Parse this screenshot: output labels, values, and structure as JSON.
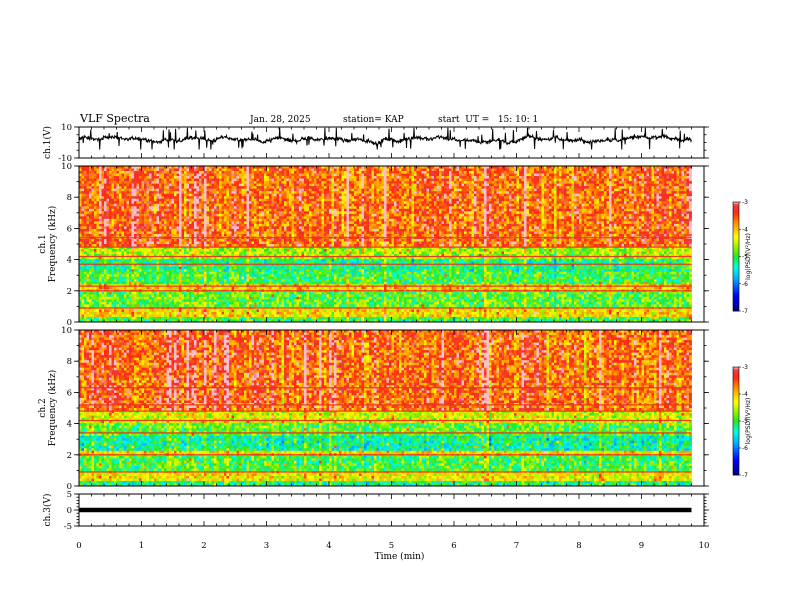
{
  "header": {
    "title": "VLF Spectra",
    "date": "Jan. 28, 2025",
    "station": "station= KAP",
    "start": "start  UT =   15: 10: 1"
  },
  "chart_data": [
    {
      "type": "line",
      "panel": "ch1-waveform",
      "ylabel": "ch.1(V)",
      "ylim": [
        -10,
        10
      ],
      "y_ticks": [
        "10",
        "-10"
      ],
      "x_range": [
        0,
        9.8
      ],
      "color": "#000000",
      "description_values": {
        "mean": 2,
        "amplitude_range": [
          -3,
          7
        ]
      }
    },
    {
      "type": "heatmap",
      "panel": "ch1-spectrogram",
      "ylabel_line1": "ch.1",
      "ylabel_line2": "Frequency  (kHz)",
      "ylim": [
        0,
        10
      ],
      "y_ticks": [
        "0",
        "2",
        "4",
        "6",
        "8",
        "10"
      ],
      "x_range": [
        0,
        9.8
      ],
      "bands_khz": [
        {
          "from": 0.0,
          "to": 0.4,
          "level": -5.0
        },
        {
          "from": 0.4,
          "to": 0.9,
          "level": -4.2
        },
        {
          "from": 0.9,
          "to": 2.0,
          "level": -4.9
        },
        {
          "from": 2.0,
          "to": 2.4,
          "level": -4.1
        },
        {
          "from": 2.4,
          "to": 3.3,
          "level": -5.0
        },
        {
          "from": 3.3,
          "to": 4.0,
          "level": -5.2
        },
        {
          "from": 4.0,
          "to": 4.8,
          "level": -4.6
        },
        {
          "from": 4.8,
          "to": 10.0,
          "level": -3.6
        }
      ],
      "lines_khz": [
        0.9,
        2.0,
        2.3,
        3.7,
        4.2,
        4.8,
        5.4
      ],
      "colorbar": {
        "label": "log(PSD)(V²/Hz)",
        "range": [
          -7,
          -3
        ],
        "ticks": [
          "-3",
          "-4",
          "-5",
          "-6",
          "-7"
        ]
      }
    },
    {
      "type": "heatmap",
      "panel": "ch2-spectrogram",
      "ylabel_line1": "ch.2",
      "ylabel_line2": "Frequency  (kHz)",
      "ylim": [
        0,
        10
      ],
      "y_ticks": [
        "0",
        "2",
        "4",
        "6",
        "8",
        "10"
      ],
      "x_range": [
        0,
        9.8
      ],
      "bands_khz": [
        {
          "from": 0.0,
          "to": 0.4,
          "level": -5.2
        },
        {
          "from": 0.4,
          "to": 0.9,
          "level": -4.3
        },
        {
          "from": 0.9,
          "to": 2.0,
          "level": -5.0
        },
        {
          "from": 2.0,
          "to": 2.3,
          "level": -4.2
        },
        {
          "from": 2.3,
          "to": 3.3,
          "level": -5.3
        },
        {
          "from": 3.3,
          "to": 4.0,
          "level": -4.9
        },
        {
          "from": 4.0,
          "to": 4.8,
          "level": -4.4
        },
        {
          "from": 4.8,
          "to": 10.0,
          "level": -3.6
        }
      ],
      "lines_khz": [
        0.9,
        2.0,
        3.4,
        4.2,
        4.8,
        5.2,
        6.3
      ],
      "colorbar": {
        "label": "log(PSD)(V²/Hz)",
        "range": [
          -7,
          -3
        ],
        "ticks": [
          "-3",
          "-4",
          "-5",
          "-6",
          "-7"
        ]
      }
    },
    {
      "type": "line",
      "panel": "ch3-waveform",
      "ylabel": "ch.3(V)",
      "ylim": [
        -5,
        5
      ],
      "y_ticks": [
        "5",
        "0",
        "-5"
      ],
      "x_range": [
        0,
        9.8
      ],
      "color": "#000000",
      "description_values": {
        "mean": 0,
        "amplitude_range": [
          -0.7,
          0.7
        ]
      }
    }
  ],
  "x_axis": {
    "label": "Time  (min)",
    "range": [
      0,
      10
    ],
    "ticks": [
      "0",
      "1",
      "2",
      "3",
      "4",
      "5",
      "6",
      "7",
      "8",
      "9",
      "10"
    ]
  }
}
